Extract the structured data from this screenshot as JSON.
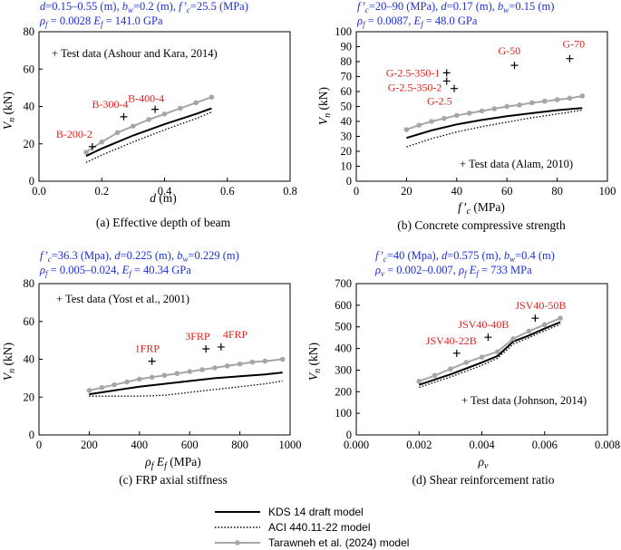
{
  "legend": [
    {
      "label": "KDS 14 draft model",
      "style": "solid"
    },
    {
      "label": "ACI 440.11-22 model",
      "style": "dotted"
    },
    {
      "label": "Tarawneh et al. (2024) model",
      "style": "marker"
    }
  ],
  "colors": {
    "solid": "#000000",
    "dotted": "#000000",
    "marker": "#a6a6a6",
    "test": "#000000",
    "label": "#e0201c",
    "params": "#1f2fd6"
  },
  "chart_data": [
    {
      "type": "line",
      "caption": "(a) Effective depth of beam",
      "params": [
        "d=0.15–0.55 (m), bw=0.2 (m), f’c=25.5 (MPa)",
        "ρf = 0.0028 Ef = 141.0 GPa"
      ],
      "xlabel": "d (m)",
      "ylabel": "Vn (kN)",
      "xlim": [
        0,
        0.8
      ],
      "ylim": [
        0,
        80
      ],
      "xticks": [
        "0.0",
        "0.2",
        "0.4",
        "0.6",
        "0.8"
      ],
      "yticks": [
        "0",
        "20",
        "40",
        "60",
        "80"
      ],
      "note": "+ Test data (Ashour and Kara, 2014)",
      "series": [
        {
          "style": "solid",
          "x": [
            0.15,
            0.2,
            0.3,
            0.4,
            0.5,
            0.55
          ],
          "y": [
            13.5,
            17.5,
            24.5,
            30.5,
            36.0,
            39.0
          ]
        },
        {
          "style": "dotted",
          "x": [
            0.15,
            0.2,
            0.3,
            0.4,
            0.5,
            0.55
          ],
          "y": [
            10.0,
            14.0,
            21.0,
            27.5,
            33.5,
            37.0
          ]
        },
        {
          "style": "marker",
          "x": [
            0.15,
            0.2,
            0.25,
            0.3,
            0.35,
            0.4,
            0.45,
            0.5,
            0.55
          ],
          "y": [
            15.5,
            21.0,
            26.0,
            29.5,
            33.0,
            36.0,
            39.0,
            42.0,
            45.0
          ]
        }
      ],
      "test_points": [
        {
          "x": 0.17,
          "y": 18.5,
          "label": "B-200-2"
        },
        {
          "x": 0.27,
          "y": 34.5,
          "label": "B-300-4"
        },
        {
          "x": 0.37,
          "y": 38.5,
          "label": "B-400-4"
        }
      ]
    },
    {
      "type": "line",
      "caption": "(b) Concrete compressive strength",
      "params": [
        "f’c=20–90 (MPa), d=0.17 (m), bw=0.15 (m)",
        "ρf = 0.0087, Ef = 48.0 GPa"
      ],
      "xlabel": "f’c (MPa)",
      "ylabel": "Vn (kN)",
      "xlim": [
        0,
        100
      ],
      "ylim": [
        0,
        100
      ],
      "xticks": [
        "0",
        "20",
        "40",
        "60",
        "80",
        "100"
      ],
      "yticks": [
        "0",
        "10",
        "20",
        "30",
        "40",
        "50",
        "60",
        "70",
        "80",
        "90",
        "100"
      ],
      "note": "+ Test data (Alam, 2010)",
      "series": [
        {
          "style": "solid",
          "x": [
            20,
            30,
            40,
            50,
            60,
            70,
            80,
            90
          ],
          "y": [
            29,
            34,
            38,
            41,
            43.5,
            45.5,
            47.5,
            49
          ]
        },
        {
          "style": "dotted",
          "x": [
            20,
            30,
            40,
            50,
            60,
            70,
            80,
            90
          ],
          "y": [
            23,
            28.5,
            33,
            36.5,
            39.5,
            42.5,
            45,
            47.5
          ]
        },
        {
          "style": "marker",
          "x": [
            20,
            25,
            30,
            35,
            40,
            45,
            50,
            55,
            60,
            65,
            70,
            75,
            80,
            85,
            90
          ],
          "y": [
            34.5,
            37.5,
            40,
            42,
            44,
            45.5,
            47,
            48.5,
            50,
            51,
            52.5,
            53.5,
            54.5,
            55.5,
            57
          ]
        }
      ],
      "test_points": [
        {
          "x": 36,
          "y": 72.5,
          "label": "G-2.5-350-1"
        },
        {
          "x": 36,
          "y": 67,
          "label": "G-2.5-350-2"
        },
        {
          "x": 39,
          "y": 62,
          "label": "G-2.5"
        },
        {
          "x": 63,
          "y": 77.5,
          "label": "G-50"
        },
        {
          "x": 85,
          "y": 82,
          "label": "G-70"
        }
      ]
    },
    {
      "type": "line",
      "caption": "(c) FRP axial stiffness",
      "params": [
        "f’c=36.3 (Mpa), d=0.225 (m), bw=0.229 (m)",
        "ρf = 0.005–0.024, Ef = 40.34 GPa"
      ],
      "xlabel": "ρf Ef (MPa)",
      "ylabel": "Vn (kN)",
      "xlim": [
        0,
        1000
      ],
      "ylim": [
        0,
        80
      ],
      "xticks": [
        "0",
        "200",
        "400",
        "600",
        "800",
        "1000"
      ],
      "yticks": [
        "0",
        "20",
        "40",
        "60",
        "80"
      ],
      "note": "+ Test data (Yost et al., 2001)",
      "series": [
        {
          "style": "solid",
          "x": [
            200,
            300,
            400,
            500,
            600,
            700,
            800,
            900,
            970
          ],
          "y": [
            21.5,
            23.5,
            25.5,
            27,
            28.5,
            30,
            31,
            32,
            33
          ]
        },
        {
          "style": "dotted",
          "x": [
            200,
            300,
            400,
            500,
            600,
            700,
            800,
            900,
            970
          ],
          "y": [
            20.5,
            20.5,
            20.5,
            21,
            22.5,
            24,
            25.5,
            27,
            28.5
          ]
        },
        {
          "style": "marker",
          "x": [
            200,
            250,
            300,
            350,
            400,
            450,
            500,
            550,
            600,
            650,
            700,
            750,
            800,
            850,
            900,
            970
          ],
          "y": [
            23.5,
            25,
            26.5,
            28,
            29.5,
            30.5,
            31.5,
            32.5,
            33.5,
            34.5,
            35.5,
            36.5,
            37.5,
            38.5,
            39,
            40
          ]
        }
      ],
      "test_points": [
        {
          "x": 450,
          "y": 39,
          "label": "1FRP"
        },
        {
          "x": 665,
          "y": 45.5,
          "label": "3FRP"
        },
        {
          "x": 725,
          "y": 46.5,
          "label": "4FRP"
        }
      ]
    },
    {
      "type": "line",
      "caption": "(d) Shear reinforcement ratio",
      "params": [
        "f’c=40 (Mpa), d=0.575 (m), bw=0.4 (m)",
        "ρv = 0.002–0.007, ρf Ef = 733 MPa"
      ],
      "xlabel": "ρv",
      "ylabel": "Vn (kN)",
      "xlim": [
        0,
        0.008
      ],
      "ylim": [
        0,
        700
      ],
      "xticks": [
        "0.000",
        "0.002",
        "0.004",
        "0.006",
        "0.008"
      ],
      "yticks": [
        "0",
        "100",
        "200",
        "300",
        "400",
        "500",
        "600",
        "700"
      ],
      "note": "+ Test data (Johnson, 2014)",
      "series": [
        {
          "style": "solid",
          "x": [
            0.002,
            0.003,
            0.004,
            0.0045,
            0.005,
            0.0055,
            0.006,
            0.0065
          ],
          "y": [
            232,
            280,
            335,
            365,
            432,
            460,
            492,
            522
          ]
        },
        {
          "style": "dotted",
          "x": [
            0.002,
            0.003,
            0.004,
            0.0045,
            0.005,
            0.0055,
            0.006,
            0.0065
          ],
          "y": [
            220,
            268,
            322,
            355,
            420,
            450,
            482,
            512
          ]
        },
        {
          "style": "marker",
          "x": [
            0.002,
            0.0025,
            0.003,
            0.0035,
            0.004,
            0.0045,
            0.005,
            0.0055,
            0.006,
            0.0065
          ],
          "y": [
            248,
            275,
            305,
            335,
            360,
            385,
            445,
            480,
            510,
            540
          ]
        }
      ],
      "test_points": [
        {
          "x": 0.0032,
          "y": 378,
          "label": "JSV40-22B"
        },
        {
          "x": 0.0042,
          "y": 452,
          "label": "JSV40-40B"
        },
        {
          "x": 0.0057,
          "y": 540,
          "label": "JSV40-50B"
        }
      ]
    }
  ]
}
